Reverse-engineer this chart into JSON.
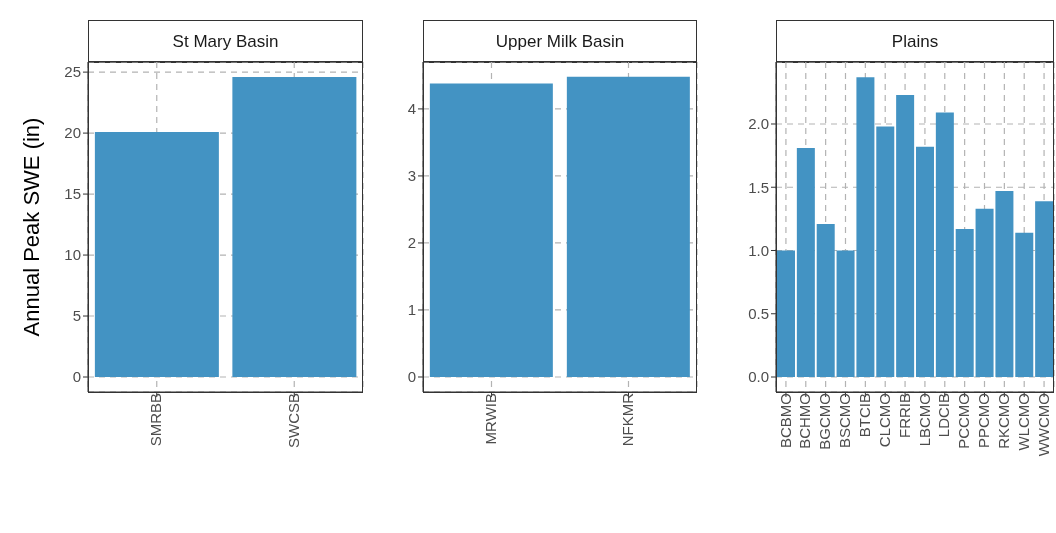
{
  "chart_data": [
    {
      "type": "bar",
      "title": "St Mary Basin",
      "ylabel": "Annual Peak SWE (in)",
      "categories": [
        "SMRBB",
        "SWCSB"
      ],
      "values": [
        20.1,
        24.6
      ],
      "color": "#4393c3",
      "ylim": [
        -1.23,
        25.83
      ],
      "yticks": [
        0,
        5,
        10,
        15,
        20,
        25
      ],
      "grid": true
    },
    {
      "type": "bar",
      "title": "Upper Milk Basin",
      "categories": [
        "MRWIB",
        "NFKMR"
      ],
      "values": [
        4.38,
        4.48
      ],
      "color": "#4393c3",
      "ylim": [
        -0.224,
        4.7
      ],
      "yticks": [
        0,
        1,
        2,
        3,
        4
      ],
      "grid": true
    },
    {
      "type": "bar",
      "title": "Plains",
      "categories": [
        "BCBMO",
        "BCHMO",
        "BGCMO",
        "BSCMO",
        "BTCIB",
        "CLCMO",
        "FRRIB",
        "LBCMO",
        "LDCIB",
        "PCCMO",
        "PPCMO",
        "RKCMO",
        "WLCMO",
        "WWCMO"
      ],
      "values": [
        1.0,
        1.81,
        1.21,
        1.0,
        2.37,
        1.98,
        2.23,
        1.82,
        2.09,
        1.17,
        1.33,
        1.47,
        1.14,
        1.39
      ],
      "color": "#4393c3",
      "ylim": [
        -0.1185,
        2.49
      ],
      "yticks": [
        {
          "value": 0,
          "label": "0.0"
        },
        0.5,
        {
          "value": 1,
          "label": "1.0"
        },
        1.5,
        {
          "value": 2,
          "label": "2.0"
        }
      ],
      "grid": true
    }
  ]
}
